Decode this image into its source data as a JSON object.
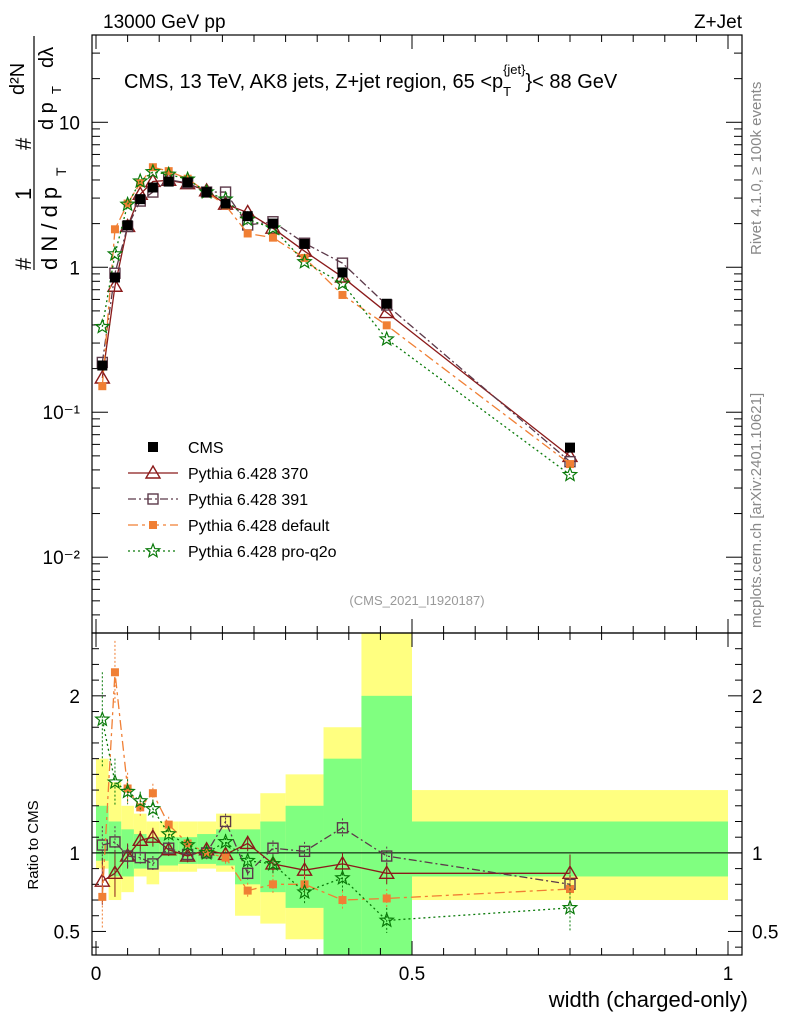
{
  "header": {
    "left": "13000 GeV pp",
    "right": "Z+Jet"
  },
  "side_text": {
    "rivet": "Rivet 4.1.0, ≥ 100k events",
    "mcplots": "mcplots.cern.ch [arXiv:2401.10621]"
  },
  "upper_ylabel": {
    "frac1": "1",
    "frac_num2": "#",
    "frac_den_dN": "d N / d p",
    "frac_den_T": "T",
    "hash_lead": "#",
    "d2N": "d²N",
    "dpT": "d p",
    "dpT_sub": "T",
    "dlambda": "dλ"
  },
  "colors": {
    "cms": "#000000",
    "p370": "#8b1a1a",
    "p391": "#5c3a4a",
    "default": "#f07f34",
    "proq2o": "#0a7a0a",
    "band_outer": "#ffff80",
    "band_inner": "#80ff80"
  },
  "chart_data": {
    "type": "line",
    "title": "CMS, 13 TeV, AK8 jets, Z+jet region, 65 <p_T^{jet}< 88 GeV",
    "title_parts": {
      "main": "CMS, 13 TeV, AK8 jets, Z+jet region, 65 <p",
      "sub": "T",
      "sup": "{jet}",
      "tail": "}< 88 GeV"
    },
    "analysis_label": "(CMS_2021_I1920187)",
    "xlabel": "width (charged-only)",
    "ylabel_ratio": "Ratio to CMS",
    "xlim": [
      0,
      1
    ],
    "ylim_upper": [
      0.003,
      40
    ],
    "ylim_ratio": [
      0.35,
      2.4
    ],
    "yscale_upper": "log",
    "x_ticks": [
      "0",
      "0.5",
      "1"
    ],
    "upper_ticks": [
      "10⁻²",
      "10⁻¹",
      "1",
      "10"
    ],
    "ratio_ticks": [
      "0.5",
      "1",
      "2"
    ],
    "bins": [
      0.0,
      0.02,
      0.04,
      0.06,
      0.08,
      0.1,
      0.13,
      0.16,
      0.19,
      0.22,
      0.26,
      0.3,
      0.36,
      0.42,
      0.5,
      1.0
    ],
    "x": [
      0.01,
      0.03,
      0.05,
      0.07,
      0.09,
      0.115,
      0.145,
      0.175,
      0.205,
      0.24,
      0.28,
      0.33,
      0.39,
      0.46,
      0.75
    ],
    "cms": [
      0.21,
      0.85,
      1.95,
      2.95,
      3.55,
      3.9,
      3.85,
      3.3,
      2.75,
      2.25,
      2.0,
      1.45,
      0.92,
      0.56,
      0.057
    ],
    "band_outer": [
      [
        0.9,
        1.6
      ],
      [
        0.7,
        1.45
      ],
      [
        0.75,
        1.3
      ],
      [
        0.85,
        1.25
      ],
      [
        0.8,
        1.2
      ],
      [
        0.88,
        1.2
      ],
      [
        0.88,
        1.2
      ],
      [
        0.9,
        1.2
      ],
      [
        0.88,
        1.25
      ],
      [
        0.6,
        1.25
      ],
      [
        0.55,
        1.38
      ],
      [
        0.45,
        1.5
      ],
      [
        0.3,
        1.8
      ],
      [
        0.25,
        2.4
      ],
      [
        0.7,
        1.4
      ]
    ],
    "band_inner": [
      [
        0.95,
        1.3
      ],
      [
        0.85,
        1.2
      ],
      [
        0.85,
        1.15
      ],
      [
        0.9,
        1.12
      ],
      [
        0.9,
        1.1
      ],
      [
        0.92,
        1.1
      ],
      [
        0.93,
        1.1
      ],
      [
        0.93,
        1.12
      ],
      [
        0.92,
        1.15
      ],
      [
        0.8,
        1.15
      ],
      [
        0.75,
        1.2
      ],
      [
        0.65,
        1.3
      ],
      [
        0.35,
        1.6
      ],
      [
        0.3,
        2.0
      ],
      [
        0.85,
        1.2
      ]
    ],
    "series": [
      {
        "name": "CMS",
        "legend": "CMS",
        "style": "cms",
        "color": "#000000"
      },
      {
        "name": "Pythia 6.428 370",
        "legend": "Pythia 6.428 370",
        "style": "p370",
        "color": "#8b1a1a",
        "ratio": [
          0.82,
          0.87,
          0.98,
          1.08,
          1.1,
          1.02,
          0.98,
          1.02,
          0.99,
          1.06,
          0.93,
          0.89,
          0.93,
          0.87,
          0.87
        ],
        "err": [
          0.15,
          0.15,
          0.08,
          0.06,
          0.06,
          0.04,
          0.04,
          0.04,
          0.05,
          0.05,
          0.06,
          0.07,
          0.07,
          0.07,
          0.12
        ]
      },
      {
        "name": "Pythia 6.428 391",
        "legend": "Pythia 6.428 391",
        "style": "p391",
        "color": "#5c3a4a",
        "ratio": [
          1.05,
          1.07,
          0.98,
          0.97,
          0.93,
          1.03,
          0.99,
          1.0,
          1.2,
          0.87,
          1.03,
          1.01,
          1.16,
          0.98,
          0.8
        ],
        "err": [
          0.12,
          0.1,
          0.07,
          0.05,
          0.05,
          0.04,
          0.04,
          0.04,
          0.05,
          0.05,
          0.05,
          0.06,
          0.06,
          0.06,
          0.1
        ]
      },
      {
        "name": "Pythia 6.428 default",
        "legend": "Pythia 6.428 default",
        "style": "default",
        "color": "#f07f34",
        "ratio": [
          0.72,
          2.15,
          1.41,
          1.29,
          1.38,
          1.18,
          1.06,
          1.0,
          0.97,
          0.76,
          0.8,
          0.8,
          0.7,
          0.71,
          0.77
        ],
        "err": [
          0.2,
          0.2,
          0.1,
          0.06,
          0.06,
          0.05,
          0.04,
          0.04,
          0.05,
          0.05,
          0.06,
          0.06,
          0.06,
          0.06,
          0.1
        ]
      },
      {
        "name": "Pythia 6.428 pro-q2o",
        "legend": "Pythia 6.428 pro-q2o",
        "style": "proq2o",
        "color": "#0a7a0a",
        "ratio": [
          1.85,
          1.45,
          1.39,
          1.33,
          1.28,
          1.12,
          1.05,
          1.0,
          1.07,
          0.95,
          0.93,
          0.75,
          0.84,
          0.57,
          0.65
        ],
        "err": [
          0.3,
          0.15,
          0.08,
          0.06,
          0.06,
          0.05,
          0.04,
          0.04,
          0.05,
          0.05,
          0.06,
          0.07,
          0.08,
          0.08,
          0.15
        ]
      }
    ]
  }
}
